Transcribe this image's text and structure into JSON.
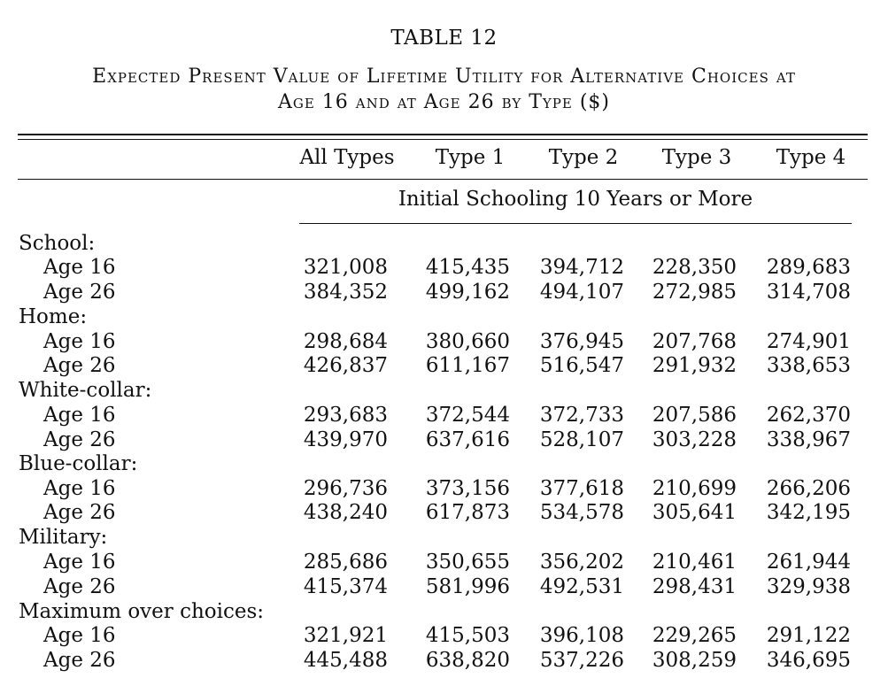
{
  "table_number": "TABLE 12",
  "title_line1": "Expected Present Value of Lifetime Utility for Alternative Choices at",
  "title_line2": "Age 16 and at Age 26 by Type ($)",
  "columns": [
    "All Types",
    "Type 1",
    "Type 2",
    "Type 3",
    "Type 4"
  ],
  "subheading": "Initial Schooling 10 Years or More",
  "groups": [
    {
      "label": "School:",
      "rows": [
        {
          "label": "Age 16",
          "values": [
            "321,008",
            "415,435",
            "394,712",
            "228,350",
            "289,683"
          ]
        },
        {
          "label": "Age 26",
          "values": [
            "384,352",
            "499,162",
            "494,107",
            "272,985",
            "314,708"
          ]
        }
      ]
    },
    {
      "label": "Home:",
      "rows": [
        {
          "label": "Age 16",
          "values": [
            "298,684",
            "380,660",
            "376,945",
            "207,768",
            "274,901"
          ]
        },
        {
          "label": "Age 26",
          "values": [
            "426,837",
            "611,167",
            "516,547",
            "291,932",
            "338,653"
          ]
        }
      ]
    },
    {
      "label": "White-collar:",
      "rows": [
        {
          "label": "Age 16",
          "values": [
            "293,683",
            "372,544",
            "372,733",
            "207,586",
            "262,370"
          ]
        },
        {
          "label": "Age 26",
          "values": [
            "439,970",
            "637,616",
            "528,107",
            "303,228",
            "338,967"
          ]
        }
      ]
    },
    {
      "label": "Blue-collar:",
      "rows": [
        {
          "label": "Age 16",
          "values": [
            "296,736",
            "373,156",
            "377,618",
            "210,699",
            "266,206"
          ]
        },
        {
          "label": "Age 26",
          "values": [
            "438,240",
            "617,873",
            "534,578",
            "305,641",
            "342,195"
          ]
        }
      ]
    },
    {
      "label": "Military:",
      "rows": [
        {
          "label": "Age 16",
          "values": [
            "285,686",
            "350,655",
            "356,202",
            "210,461",
            "261,944"
          ]
        },
        {
          "label": "Age 26",
          "values": [
            "415,374",
            "581,996",
            "492,531",
            "298,431",
            "329,938"
          ]
        }
      ]
    },
    {
      "label": "Maximum over choices:",
      "rows": [
        {
          "label": "Age 16",
          "values": [
            "321,921",
            "415,503",
            "396,108",
            "229,265",
            "291,122"
          ]
        },
        {
          "label": "Age 26",
          "values": [
            "445,488",
            "638,820",
            "537,226",
            "308,259",
            "346,695"
          ]
        }
      ]
    }
  ]
}
